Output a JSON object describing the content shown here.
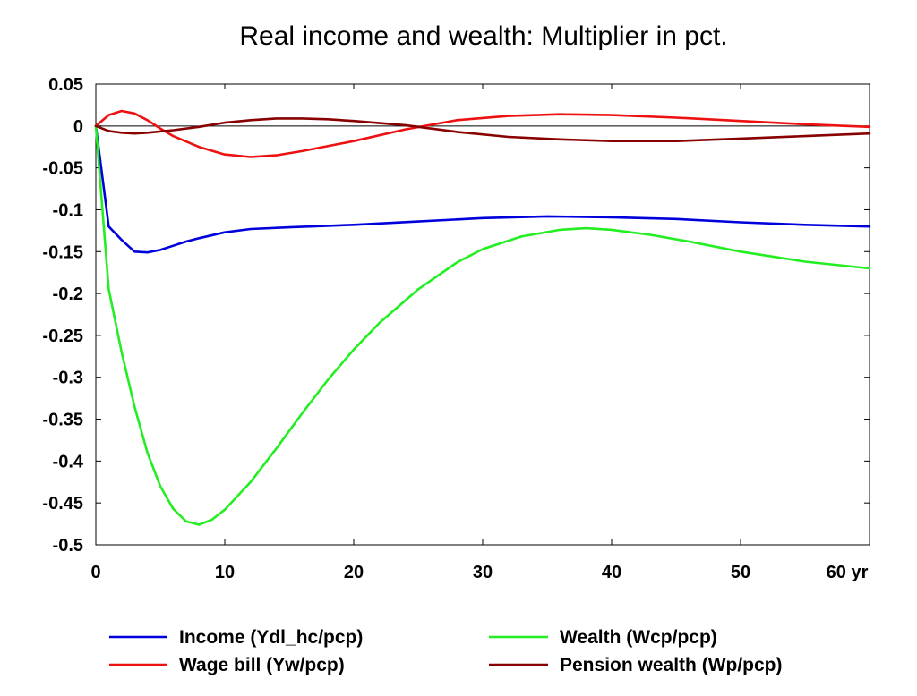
{
  "chart_data": {
    "type": "line",
    "title": "Real income and wealth: Multiplier in pct.",
    "xlabel": "",
    "ylabel": "",
    "xlim": [
      0,
      60
    ],
    "ylim": [
      -0.5,
      0.05
    ],
    "x_ticks": [
      0,
      10,
      20,
      30,
      40,
      50,
      60
    ],
    "x_tick_labels": [
      "0",
      "10",
      "20",
      "30",
      "40",
      "50",
      "60 yr"
    ],
    "y_ticks": [
      0.05,
      0,
      -0.05,
      -0.1,
      -0.15,
      -0.2,
      -0.25,
      -0.3,
      -0.35,
      -0.4,
      -0.45,
      -0.5
    ],
    "y_tick_labels": [
      "0.05",
      "0",
      "-0.05",
      "-0.1",
      "-0.15",
      "-0.2",
      "-0.25",
      "-0.3",
      "-0.35",
      "-0.4",
      "-0.45",
      "-0.5"
    ],
    "zero_line": true,
    "grid": false,
    "legend_position": "bottom",
    "series": [
      {
        "name": "Income (Ydl_hc/pcp)",
        "color": "#0000dd",
        "x": [
          0,
          1,
          2,
          3,
          4,
          5,
          6,
          7,
          8,
          10,
          12,
          15,
          20,
          25,
          30,
          35,
          40,
          45,
          50,
          55,
          60
        ],
        "y": [
          0,
          -0.12,
          -0.136,
          -0.15,
          -0.151,
          -0.148,
          -0.143,
          -0.138,
          -0.134,
          -0.127,
          -0.123,
          -0.121,
          -0.118,
          -0.114,
          -0.11,
          -0.108,
          -0.109,
          -0.111,
          -0.115,
          -0.118,
          -0.12
        ]
      },
      {
        "name": "Wage bill (Yw/pcp)",
        "color": "#ee1111",
        "x": [
          0,
          1,
          2,
          3,
          4,
          5,
          6,
          8,
          10,
          12,
          14,
          16,
          20,
          24,
          28,
          32,
          36,
          40,
          45,
          50,
          55,
          60
        ],
        "y": [
          0,
          0.013,
          0.018,
          0.015,
          0.007,
          -0.003,
          -0.012,
          -0.025,
          -0.034,
          -0.037,
          -0.035,
          -0.03,
          -0.018,
          -0.004,
          0.007,
          0.012,
          0.014,
          0.013,
          0.01,
          0.006,
          0.002,
          -0.001
        ]
      },
      {
        "name": "Wealth (Wcp/pcp)",
        "color": "#22ee22",
        "x": [
          0,
          1,
          2,
          3,
          4,
          5,
          6,
          7,
          8,
          9,
          10,
          12,
          14,
          16,
          18,
          20,
          22,
          25,
          28,
          30,
          33,
          36,
          38,
          40,
          43,
          46,
          50,
          55,
          60
        ],
        "y": [
          0,
          -0.195,
          -0.27,
          -0.335,
          -0.39,
          -0.43,
          -0.457,
          -0.472,
          -0.476,
          -0.47,
          -0.458,
          -0.425,
          -0.385,
          -0.343,
          -0.303,
          -0.267,
          -0.235,
          -0.195,
          -0.163,
          -0.147,
          -0.132,
          -0.124,
          -0.122,
          -0.124,
          -0.13,
          -0.138,
          -0.15,
          -0.162,
          -0.17
        ]
      },
      {
        "name": "Pension wealth (Wp/pcp)",
        "color": "#880000",
        "x": [
          0,
          1,
          2,
          3,
          4,
          6,
          8,
          10,
          12,
          14,
          16,
          18,
          20,
          24,
          28,
          32,
          36,
          40,
          45,
          50,
          55,
          60
        ],
        "y": [
          0,
          -0.006,
          -0.008,
          -0.009,
          -0.008,
          -0.005,
          -0.001,
          0.004,
          0.007,
          0.009,
          0.009,
          0.008,
          0.006,
          0.001,
          -0.007,
          -0.013,
          -0.016,
          -0.018,
          -0.018,
          -0.015,
          -0.012,
          -0.009
        ]
      }
    ]
  }
}
